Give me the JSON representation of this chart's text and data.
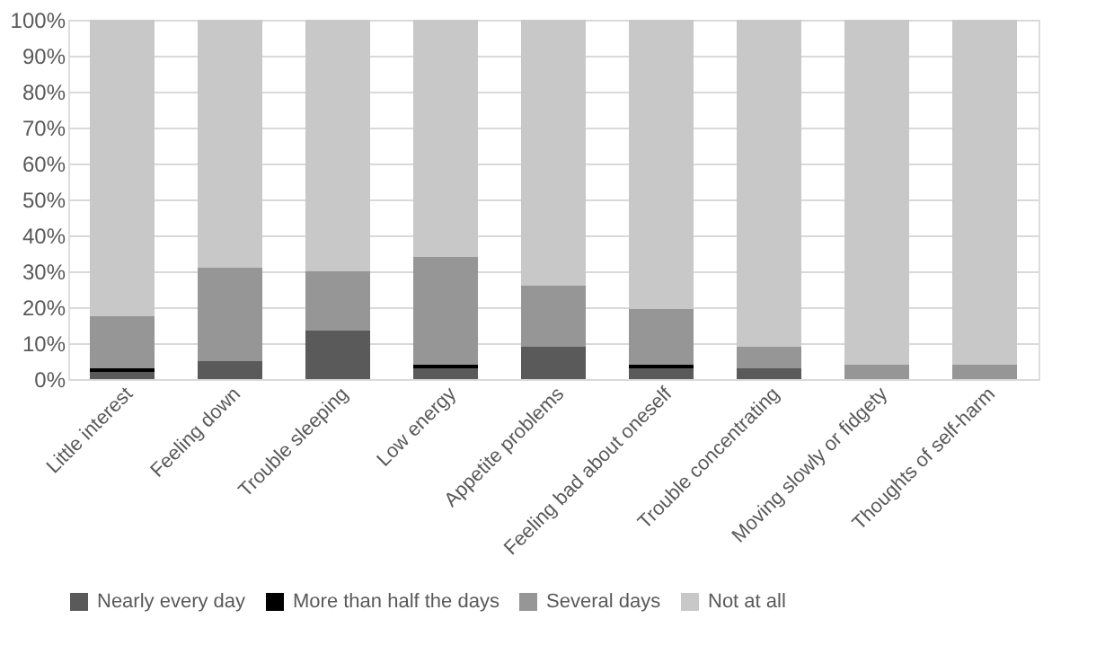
{
  "chart_data": {
    "type": "bar",
    "stacked": true,
    "categories": [
      "Little interest",
      "Feeling down",
      "Trouble sleeping",
      "Low energy",
      "Appetite problems",
      "Feeling bad about oneself",
      "Trouble concentrating",
      "Moving slowly or fidgety",
      "Thoughts of self-harm"
    ],
    "series": [
      {
        "name": "Nearly every day",
        "color": "#5a5a5a",
        "values": [
          2,
          5,
          13.5,
          3,
          9,
          3,
          3,
          0,
          0
        ]
      },
      {
        "name": "More than half the days",
        "color": "#000000",
        "values": [
          1,
          0,
          0,
          1,
          0,
          1,
          0,
          0,
          0
        ]
      },
      {
        "name": "Several days",
        "color": "#969696",
        "values": [
          14.5,
          26,
          16.5,
          30,
          17,
          15.5,
          6,
          4,
          4
        ]
      },
      {
        "name": "Not at all",
        "color": "#c8c8c8",
        "values": [
          82.5,
          69,
          70,
          66,
          74,
          80.5,
          91,
          96,
          96
        ]
      }
    ],
    "ylim": [
      0,
      100
    ],
    "yticks": [
      {
        "value": 0,
        "label": "0%"
      },
      {
        "value": 10,
        "label": "10%"
      },
      {
        "value": 20,
        "label": "20%"
      },
      {
        "value": 30,
        "label": "30%"
      },
      {
        "value": 40,
        "label": "40%"
      },
      {
        "value": 50,
        "label": "50%"
      },
      {
        "value": 60,
        "label": "60%"
      },
      {
        "value": 70,
        "label": "70%"
      },
      {
        "value": 80,
        "label": "80%"
      },
      {
        "value": 90,
        "label": "90%"
      },
      {
        "value": 100,
        "label": "100%"
      }
    ],
    "grid": "y",
    "legend": "bottom"
  }
}
